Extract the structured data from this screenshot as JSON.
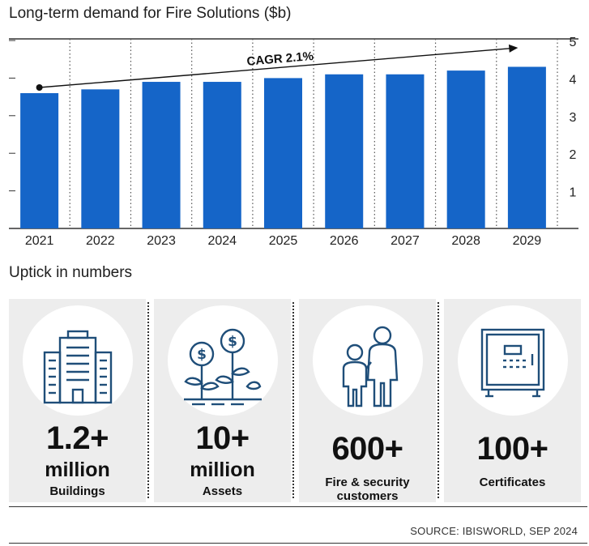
{
  "chart_data": {
    "type": "bar",
    "title": "Long-term demand for Fire Solutions ($b)",
    "categories": [
      "2021",
      "2022",
      "2023",
      "2024",
      "2025",
      "2026",
      "2027",
      "2028",
      "2029"
    ],
    "values": [
      3.6,
      3.7,
      3.9,
      3.9,
      4.0,
      4.1,
      4.1,
      4.2,
      4.3
    ],
    "ylim": [
      0,
      5
    ],
    "yticks": [
      1,
      2,
      3,
      4,
      5
    ],
    "annotation": "CAGR 2.1%",
    "bar_color": "#1565c8",
    "y_axis_side": "right",
    "grid": "vertical dotted separators"
  },
  "subtitle": "Uptick in numbers",
  "stats": [
    {
      "icon": "buildings-icon",
      "value": "1.2+",
      "unit": "million",
      "label": "Buildings"
    },
    {
      "icon": "plant-dollar-icon",
      "value": "10+",
      "unit": "million",
      "label": "Assets"
    },
    {
      "icon": "people-icon",
      "value": "600+",
      "label_line1": "Fire & security",
      "label_line2": "customers"
    },
    {
      "icon": "safe-icon",
      "value": "100+",
      "label": "Certificates"
    }
  ],
  "source": "SOURCE: IBISWORLD, SEP 2024",
  "colors": {
    "bar": "#1565c8",
    "icon": "#1f4e79",
    "panel": "#ededed"
  }
}
